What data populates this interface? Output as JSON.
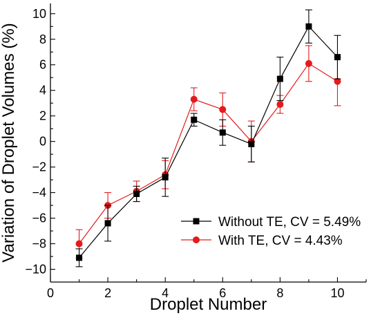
{
  "chart_data": {
    "type": "line",
    "title": "",
    "xlabel": "Droplet Number",
    "ylabel": "Variation of Droplet Volumes (%)",
    "xlim": [
      0,
      11
    ],
    "ylim": [
      -11,
      10.8
    ],
    "xticks": [
      0,
      2,
      4,
      6,
      8,
      10
    ],
    "xtick_labels": [
      "0",
      "2",
      "4",
      "6",
      "8",
      "10"
    ],
    "yticks": [
      -10,
      -8,
      -6,
      -4,
      -2,
      0,
      2,
      4,
      6,
      8,
      10
    ],
    "ytick_labels": [
      "−10",
      "−8",
      "−6",
      "−4",
      "−2",
      "0",
      "2",
      "4",
      "6",
      "8",
      "10"
    ],
    "grid": false,
    "legend_position": "bottom-right",
    "x": [
      1,
      2,
      3,
      4,
      5,
      6,
      7,
      8,
      9,
      10
    ],
    "series": [
      {
        "name": "Without TE, CV = 5.49%",
        "color": "#000000",
        "marker": "square",
        "values": [
          -9.1,
          -6.4,
          -4.1,
          -2.8,
          1.7,
          0.7,
          -0.2,
          4.9,
          9.0,
          6.6
        ],
        "error": [
          0.7,
          1.4,
          0.6,
          1.5,
          0.5,
          1.0,
          1.4,
          1.7,
          1.3,
          1.7
        ]
      },
      {
        "name": "With TE, CV = 4.43%",
        "color": "#e41a1c",
        "marker": "circle",
        "values": [
          -8.0,
          -5.0,
          -3.9,
          -2.6,
          3.3,
          2.5,
          0.0,
          2.9,
          6.1,
          4.7
        ],
        "error": [
          1.1,
          1.0,
          0.8,
          1.1,
          0.9,
          1.3,
          1.6,
          0.7,
          1.4,
          1.9
        ]
      }
    ]
  }
}
